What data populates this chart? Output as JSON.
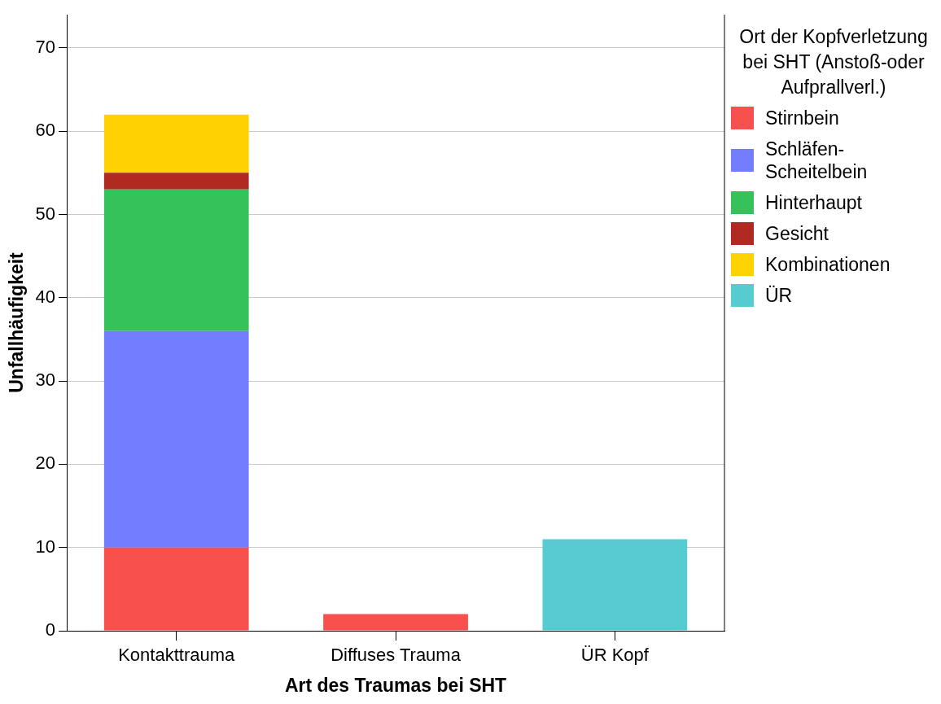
{
  "chart_data": {
    "type": "bar",
    "stacked": true,
    "xlabel": "Art des Traumas bei SHT",
    "ylabel": "Unfallhäufigkeit",
    "legend_title": "Ort der Kopfverletzung bei SHT (Anstoß-oder Aufprallverl.)",
    "legend": "right",
    "grid": "y",
    "categories": [
      "Kontakttrauma",
      "Diffuses Trauma",
      "ÜR Kopf"
    ],
    "ylim": [
      0,
      74
    ],
    "yticks": [
      0,
      10,
      20,
      30,
      40,
      50,
      60,
      70
    ],
    "series": [
      {
        "name": "Stirnbein",
        "color": "#f8504c",
        "values": [
          10,
          2,
          0
        ]
      },
      {
        "name": "Schläfen-Scheitelbein",
        "color": "#737dff",
        "values": [
          26,
          0,
          0
        ]
      },
      {
        "name": "Hinterhaupt",
        "color": "#35c25a",
        "values": [
          17,
          0,
          0
        ]
      },
      {
        "name": "Gesicht",
        "color": "#b02a22",
        "values": [
          2,
          0,
          0
        ]
      },
      {
        "name": "Kombinationen",
        "color": "#ffd200",
        "values": [
          7,
          0,
          0
        ]
      },
      {
        "name": "ÜR",
        "color": "#57ccd0",
        "values": [
          0,
          0,
          11
        ]
      }
    ]
  }
}
